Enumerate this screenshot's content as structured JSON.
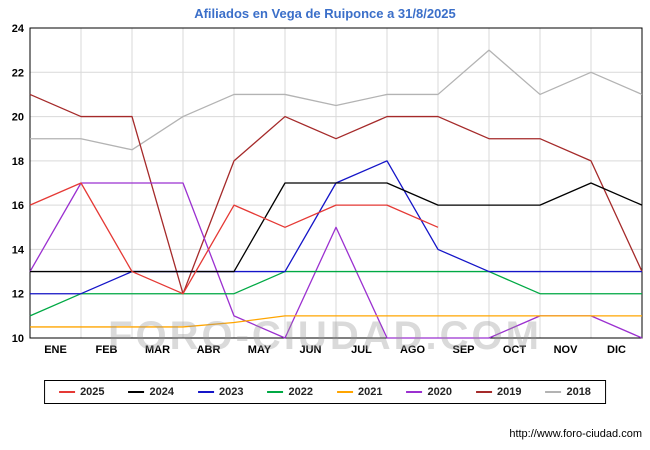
{
  "title": "Afiliados en Vega de Ruiponce a 31/8/2025",
  "watermark": "FORO-CIUDAD.COM",
  "footer_url": "http://www.foro-ciudad.com",
  "chart_data": {
    "type": "line",
    "title": "Afiliados en Vega de Ruiponce a 31/8/2025",
    "x_tick_labels": [
      "ENE",
      "FEB",
      "MAR",
      "ABR",
      "MAY",
      "JUN",
      "JUL",
      "AGO",
      "SEP",
      "OCT",
      "NOV",
      "DIC"
    ],
    "ylim": [
      10,
      24
    ],
    "y_ticks": [
      10,
      12,
      14,
      16,
      18,
      20,
      22,
      24
    ],
    "grid": true,
    "legend_position": "bottom",
    "series": [
      {
        "name": "2025",
        "color": "#e53935",
        "values": [
          16,
          17,
          13,
          12,
          16,
          15,
          16,
          16,
          15
        ]
      },
      {
        "name": "2024",
        "color": "#000000",
        "values": [
          13,
          13,
          13,
          13,
          13,
          17,
          17,
          17,
          16,
          16,
          16,
          17,
          16
        ]
      },
      {
        "name": "2023",
        "color": "#1515c8",
        "values": [
          12,
          12,
          13,
          13,
          13,
          13,
          17,
          18,
          14,
          13,
          13,
          13,
          13
        ]
      },
      {
        "name": "2022",
        "color": "#00a944",
        "values": [
          11,
          12,
          12,
          12,
          12,
          13,
          13,
          13,
          13,
          13,
          12,
          12,
          12
        ]
      },
      {
        "name": "2021",
        "color": "#ffa500",
        "values": [
          10.5,
          10.5,
          10.5,
          10.5,
          10.7,
          11,
          11,
          11,
          11,
          11,
          11,
          11,
          11
        ]
      },
      {
        "name": "2020",
        "color": "#9b30d0",
        "values": [
          13,
          17,
          17,
          17,
          11,
          10,
          15,
          10,
          10,
          10,
          11,
          11,
          10
        ]
      },
      {
        "name": "2019",
        "color": "#a52a2a",
        "values": [
          21,
          20,
          20,
          12,
          18,
          20,
          19,
          20,
          20,
          19,
          19,
          18,
          13
        ]
      },
      {
        "name": "2018",
        "color": "#b3b3b3",
        "values": [
          19,
          19,
          18.5,
          20,
          21,
          21,
          20.5,
          21,
          21,
          23,
          21,
          22,
          21
        ]
      }
    ]
  }
}
